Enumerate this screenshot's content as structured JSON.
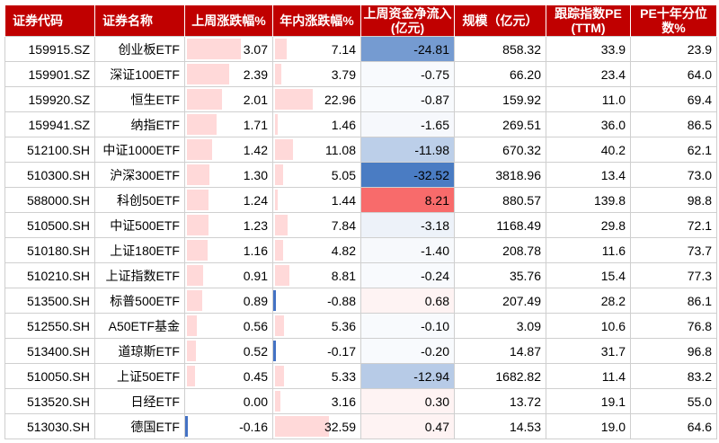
{
  "headers": [
    "证券代码",
    "证券名称",
    "上周涨跌幅%",
    "年内涨跌幅%",
    "上周资金净流入\n(亿元)",
    "规模（亿元）",
    "跟踪指数PE\n(TTM)",
    "PE十年分位数%"
  ],
  "colors": {
    "header_bg": "#c00000",
    "bar_positive": "#ffd9d9",
    "bar_negative": "#4472c4",
    "flow_max_negative": "#4a7cc3",
    "flow_max_positive": "#f86b6b"
  },
  "rows": [
    {
      "code": "159915.SZ",
      "name": "创业板ETF",
      "week_chg": "3.07",
      "ytd_chg": "7.14",
      "flow": "-24.81",
      "scale": "858.32",
      "pe": "33.9",
      "pe_pct": "23.9"
    },
    {
      "code": "159901.SZ",
      "name": "深证100ETF",
      "week_chg": "2.39",
      "ytd_chg": "3.79",
      "flow": "-0.75",
      "scale": "66.20",
      "pe": "23.4",
      "pe_pct": "64.0"
    },
    {
      "code": "159920.SZ",
      "name": "恒生ETF",
      "week_chg": "2.01",
      "ytd_chg": "22.96",
      "flow": "-0.87",
      "scale": "159.92",
      "pe": "11.0",
      "pe_pct": "69.4"
    },
    {
      "code": "159941.SZ",
      "name": "纳指ETF",
      "week_chg": "1.71",
      "ytd_chg": "1.46",
      "flow": "-1.65",
      "scale": "269.51",
      "pe": "36.0",
      "pe_pct": "86.5"
    },
    {
      "code": "512100.SH",
      "name": "中证1000ETF",
      "week_chg": "1.42",
      "ytd_chg": "11.08",
      "flow": "-11.98",
      "scale": "670.32",
      "pe": "40.2",
      "pe_pct": "62.1"
    },
    {
      "code": "510300.SH",
      "name": "沪深300ETF",
      "week_chg": "1.30",
      "ytd_chg": "5.05",
      "flow": "-32.52",
      "scale": "3818.96",
      "pe": "13.4",
      "pe_pct": "73.0"
    },
    {
      "code": "588000.SH",
      "name": "科创50ETF",
      "week_chg": "1.24",
      "ytd_chg": "1.44",
      "flow": "8.21",
      "scale": "880.57",
      "pe": "139.8",
      "pe_pct": "98.8"
    },
    {
      "code": "510500.SH",
      "name": "中证500ETF",
      "week_chg": "1.23",
      "ytd_chg": "7.84",
      "flow": "-3.18",
      "scale": "1168.49",
      "pe": "29.8",
      "pe_pct": "72.1"
    },
    {
      "code": "510180.SH",
      "name": "上证180ETF",
      "week_chg": "1.16",
      "ytd_chg": "4.82",
      "flow": "-1.40",
      "scale": "208.78",
      "pe": "11.6",
      "pe_pct": "73.7"
    },
    {
      "code": "510210.SH",
      "name": "上证指数ETF",
      "week_chg": "0.91",
      "ytd_chg": "8.81",
      "flow": "-0.24",
      "scale": "35.76",
      "pe": "15.4",
      "pe_pct": "77.3"
    },
    {
      "code": "513500.SH",
      "name": "标普500ETF",
      "week_chg": "0.89",
      "ytd_chg": "-0.88",
      "flow": "0.68",
      "scale": "207.49",
      "pe": "28.2",
      "pe_pct": "86.1"
    },
    {
      "code": "512550.SH",
      "name": "A50ETF基金",
      "week_chg": "0.56",
      "ytd_chg": "5.36",
      "flow": "-0.10",
      "scale": "3.09",
      "pe": "10.6",
      "pe_pct": "76.8"
    },
    {
      "code": "513400.SH",
      "name": "道琼斯ETF",
      "week_chg": "0.52",
      "ytd_chg": "-0.17",
      "flow": "-0.20",
      "scale": "14.87",
      "pe": "31.7",
      "pe_pct": "96.8"
    },
    {
      "code": "510050.SH",
      "name": "上证50ETF",
      "week_chg": "0.45",
      "ytd_chg": "5.33",
      "flow": "-12.94",
      "scale": "1682.82",
      "pe": "11.4",
      "pe_pct": "83.2"
    },
    {
      "code": "513520.SH",
      "name": "日经ETF",
      "week_chg": "0.00",
      "ytd_chg": "3.16",
      "flow": "0.30",
      "scale": "13.72",
      "pe": "19.1",
      "pe_pct": "55.0"
    },
    {
      "code": "513030.SH",
      "name": "德国ETF",
      "week_chg": "-0.16",
      "ytd_chg": "32.59",
      "flow": "0.47",
      "scale": "14.53",
      "pe": "19.0",
      "pe_pct": "64.6"
    }
  ]
}
